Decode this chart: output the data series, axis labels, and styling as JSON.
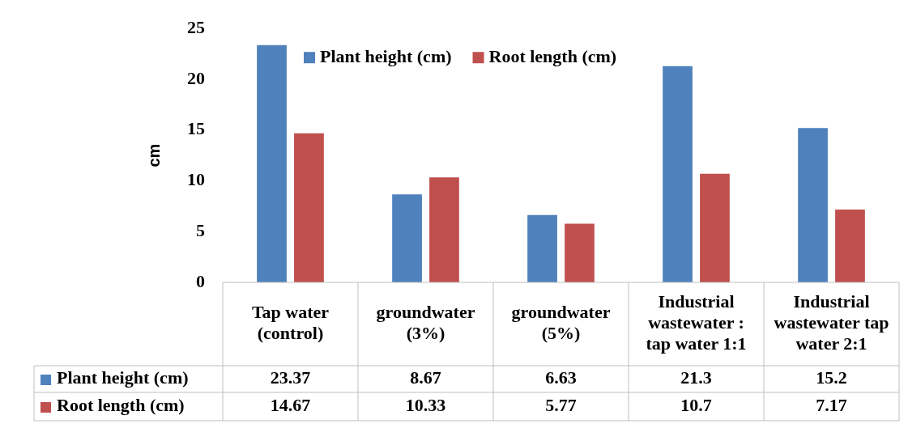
{
  "chart_data": {
    "type": "bar",
    "ylabel": "cm",
    "categories": [
      "Tap water (control)",
      "groundwater (3%)",
      "groundwater (5%)",
      "Industrial wastewater : tap water 1:1",
      "Industrial wastewater tap water 2:1"
    ],
    "series": [
      {
        "name": "Plant height (cm)",
        "color": "#4f81bd",
        "values": [
          23.37,
          8.67,
          6.63,
          21.3,
          15.2
        ]
      },
      {
        "name": "Root length (cm)",
        "color": "#c0504d",
        "values": [
          14.67,
          10.33,
          5.77,
          10.7,
          7.17
        ]
      }
    ],
    "ylim": [
      0,
      25
    ],
    "yticks": [
      0,
      5,
      10,
      15,
      20,
      25
    ],
    "grid": false,
    "legend": "top",
    "data_labels": true
  }
}
